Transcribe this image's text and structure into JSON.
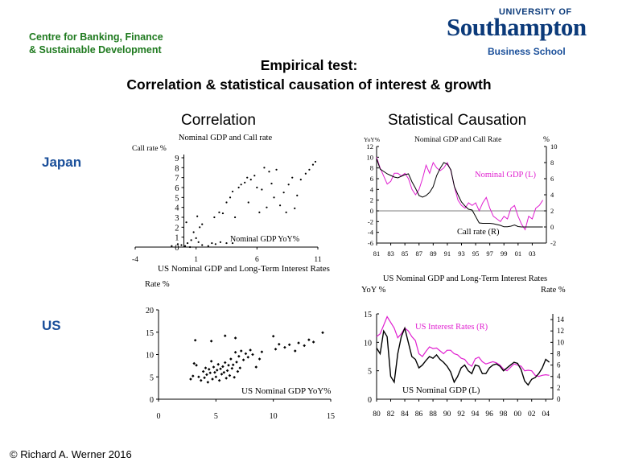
{
  "header": {
    "centre_line1": "Centre for Banking, Finance",
    "centre_line2": "& Sustainable Development",
    "university_small": "UNIVERSITY OF",
    "university_big": "Southampton",
    "business_school": "Business School"
  },
  "title_line1": "Empirical test:",
  "title_line2": "Correlation & statistical causation of interest & growth",
  "columns": {
    "left": "Correlation",
    "right": "Statistical Causation"
  },
  "rows": {
    "top": "Japan",
    "bottom": "US"
  },
  "footer": "© Richard A. Werner 2016",
  "colors": {
    "magenta": "#e020d0",
    "black": "#000000",
    "accent": "#1a4f9a",
    "green": "#1f7a1f"
  },
  "chart_data": [
    {
      "id": "japan-scatter",
      "type": "scatter",
      "title": "Nominal GDP and Call rate",
      "ylabel": "Call rate %",
      "xlabel": "Nominal GDP YoY%",
      "x_ticks": [
        "-4",
        "1",
        "6",
        "11"
      ],
      "y_ticks": [
        "0",
        "1",
        "2",
        "3",
        "4",
        "5",
        "6",
        "7",
        "8",
        "9"
      ],
      "xlim": [
        -4,
        11
      ],
      "ylim": [
        0,
        9
      ],
      "points": [
        [
          -1.0,
          0.1
        ],
        [
          -0.5,
          0.3
        ],
        [
          -0.2,
          0.2
        ],
        [
          0.1,
          0.1
        ],
        [
          0.3,
          0.4
        ],
        [
          0.5,
          0.0
        ],
        [
          0.6,
          0.7
        ],
        [
          0.8,
          1.5
        ],
        [
          1.0,
          0.9
        ],
        [
          1.2,
          0.5
        ],
        [
          1.3,
          2.0
        ],
        [
          1.5,
          2.3
        ],
        [
          0.2,
          2.5
        ],
        [
          1.1,
          3.1
        ],
        [
          1.5,
          0.2
        ],
        [
          2.0,
          0.1
        ],
        [
          2.3,
          0.4
        ],
        [
          2.6,
          0.3
        ],
        [
          3.0,
          0.5
        ],
        [
          3.5,
          0.4
        ],
        [
          4.0,
          0.4
        ],
        [
          2.5,
          3.0
        ],
        [
          2.9,
          3.5
        ],
        [
          3.2,
          3.4
        ],
        [
          3.5,
          4.5
        ],
        [
          3.8,
          5.0
        ],
        [
          4.0,
          5.6
        ],
        [
          4.2,
          3.0
        ],
        [
          4.5,
          6.0
        ],
        [
          4.7,
          6.3
        ],
        [
          5.0,
          6.5
        ],
        [
          5.2,
          7.0
        ],
        [
          5.3,
          4.5
        ],
        [
          5.5,
          6.8
        ],
        [
          5.8,
          7.2
        ],
        [
          6.0,
          6.0
        ],
        [
          6.2,
          3.5
        ],
        [
          6.4,
          5.8
        ],
        [
          6.6,
          8.0
        ],
        [
          6.8,
          4.0
        ],
        [
          7.0,
          7.6
        ],
        [
          7.2,
          6.4
        ],
        [
          7.4,
          5.0
        ],
        [
          7.6,
          7.8
        ],
        [
          7.9,
          4.2
        ],
        [
          8.2,
          5.5
        ],
        [
          8.4,
          3.5
        ],
        [
          8.6,
          6.3
        ],
        [
          8.9,
          7.0
        ],
        [
          9.1,
          3.9
        ],
        [
          9.3,
          5.2
        ],
        [
          9.6,
          6.8
        ],
        [
          10.0,
          7.4
        ],
        [
          10.3,
          7.8
        ],
        [
          10.6,
          8.3
        ],
        [
          10.8,
          8.6
        ]
      ]
    },
    {
      "id": "japan-timeseries",
      "type": "line",
      "title": "Nominal GDP and Call Rate",
      "left_unit": "YoY%",
      "right_unit": "%",
      "x_ticks": [
        "81",
        "83",
        "85",
        "87",
        "89",
        "91",
        "93",
        "95",
        "97",
        "99",
        "01",
        "03"
      ],
      "xlim": [
        81,
        105
      ],
      "left_ticks": [
        "12",
        "10",
        "8",
        "6",
        "4",
        "2",
        "0",
        "-2",
        "-4",
        "-6"
      ],
      "left_lim": [
        -6,
        12
      ],
      "right_ticks": [
        "10",
        "8",
        "6",
        "4",
        "2",
        "0",
        "-2"
      ],
      "right_lim": [
        -2,
        10
      ],
      "series": [
        {
          "name": "Nominal GDP (L)",
          "axis": "left",
          "color": "#e020d0",
          "x": [
            81,
            81.5,
            82,
            82.5,
            83,
            83.5,
            84,
            84.5,
            85,
            85.5,
            86,
            86.5,
            87,
            87.5,
            88,
            88.5,
            89,
            89.5,
            90,
            90.5,
            91,
            91.5,
            92,
            92.5,
            93,
            93.5,
            94,
            94.5,
            95,
            95.5,
            96,
            96.5,
            97,
            97.5,
            98,
            98.5,
            99,
            99.5,
            100,
            100.5,
            101,
            101.5,
            102,
            102.5,
            103,
            103.5,
            104,
            104.5
          ],
          "y": [
            10,
            8,
            6.5,
            5,
            5.5,
            7,
            7,
            6.5,
            7,
            6,
            4,
            3,
            4,
            6,
            8.5,
            7,
            9,
            8,
            7.5,
            8,
            9,
            7.5,
            4.5,
            2,
            1,
            0.5,
            1.5,
            1,
            1.5,
            0,
            1.5,
            2.5,
            0.5,
            -1,
            -1.5,
            -2,
            -1,
            -1.5,
            0.5,
            1,
            -1,
            -2.5,
            -3.5,
            -1,
            -1.5,
            0.5,
            1,
            2
          ]
        },
        {
          "name": "Call rate (R)",
          "axis": "right",
          "color": "#000000",
          "x": [
            81,
            81.5,
            82,
            82.5,
            83,
            83.5,
            84,
            84.5,
            85,
            85.5,
            86,
            86.5,
            87,
            87.5,
            88,
            88.5,
            89,
            89.5,
            90,
            90.5,
            91,
            91.5,
            92,
            92.5,
            93,
            93.5,
            94,
            94.5,
            95,
            95.5,
            96,
            96.5,
            97,
            97.5,
            98,
            98.5,
            99,
            99.5,
            100,
            100.5,
            101,
            101.5,
            102,
            102.5,
            103,
            103.5,
            104,
            104.5
          ],
          "y": [
            8.5,
            7.2,
            6.9,
            6.6,
            6.4,
            6.2,
            6.1,
            6.3,
            6.5,
            6.6,
            5.6,
            4.8,
            3.9,
            3.7,
            3.9,
            4.3,
            5,
            6.4,
            7.3,
            8,
            7.8,
            7.1,
            5,
            4,
            3.1,
            2.6,
            2.2,
            2.1,
            1.3,
            0.5,
            0.45,
            0.45,
            0.45,
            0.4,
            0.3,
            0.2,
            0.02,
            0.03,
            0.1,
            0.25,
            0.05,
            0.002,
            0.001,
            0.001,
            0.001,
            0.001,
            0.001,
            0.001
          ]
        }
      ],
      "annotations": [
        "Nominal GDP (L)",
        "Call rate (R)"
      ]
    },
    {
      "id": "us-scatter",
      "type": "scatter",
      "title": "US Nominal GDP and Long-Term Interest Rates",
      "ylabel": "Rate %",
      "xlabel": "US Nominal GDP YoY%",
      "x_ticks": [
        "0",
        "5",
        "10",
        "15"
      ],
      "y_ticks": [
        "0",
        "5",
        "10",
        "15",
        "20"
      ],
      "xlim": [
        0,
        15
      ],
      "ylim": [
        0,
        20
      ],
      "points": [
        [
          2.8,
          4.5
        ],
        [
          3.0,
          5.2
        ],
        [
          3.1,
          8.0
        ],
        [
          3.3,
          7.6
        ],
        [
          3.2,
          13.2
        ],
        [
          3.5,
          5.0
        ],
        [
          3.7,
          4.2
        ],
        [
          3.9,
          6.2
        ],
        [
          4.0,
          4.8
        ],
        [
          4.1,
          7.0
        ],
        [
          4.2,
          5.5
        ],
        [
          4.3,
          3.8
        ],
        [
          4.4,
          6.7
        ],
        [
          4.5,
          5.9
        ],
        [
          4.6,
          8.5
        ],
        [
          4.7,
          4.5
        ],
        [
          4.8,
          7.2
        ],
        [
          4.9,
          6.0
        ],
        [
          5.0,
          5.0
        ],
        [
          5.1,
          6.5
        ],
        [
          5.2,
          7.8
        ],
        [
          5.3,
          4.2
        ],
        [
          5.4,
          6.8
        ],
        [
          5.5,
          5.6
        ],
        [
          5.6,
          7.3
        ],
        [
          5.7,
          6.0
        ],
        [
          5.8,
          8.2
        ],
        [
          5.9,
          4.7
        ],
        [
          6.0,
          6.4
        ],
        [
          6.1,
          7.6
        ],
        [
          6.2,
          5.3
        ],
        [
          6.3,
          9.0
        ],
        [
          6.4,
          6.9
        ],
        [
          6.5,
          7.7
        ],
        [
          6.6,
          4.9
        ],
        [
          6.7,
          10.5
        ],
        [
          6.8,
          8.3
        ],
        [
          6.9,
          6.2
        ],
        [
          7.0,
          9.6
        ],
        [
          7.1,
          7.0
        ],
        [
          7.2,
          10.8
        ],
        [
          7.4,
          8.8
        ],
        [
          7.6,
          10.2
        ],
        [
          7.8,
          9.4
        ],
        [
          8.0,
          11.0
        ],
        [
          8.2,
          10.0
        ],
        [
          8.5,
          7.2
        ],
        [
          8.8,
          9.0
        ],
        [
          9.0,
          10.6
        ],
        [
          4.6,
          13.0
        ],
        [
          5.8,
          14.2
        ],
        [
          6.7,
          13.7
        ],
        [
          10.0,
          14.1
        ],
        [
          10.2,
          11.2
        ],
        [
          10.5,
          12.3
        ],
        [
          11.0,
          11.6
        ],
        [
          11.4,
          12.2
        ],
        [
          11.9,
          10.8
        ],
        [
          12.2,
          12.6
        ],
        [
          12.7,
          12.0
        ],
        [
          13.1,
          13.3
        ],
        [
          13.5,
          12.8
        ],
        [
          14.3,
          14.9
        ]
      ]
    },
    {
      "id": "us-timeseries",
      "type": "line",
      "title": "US Nominal GDP and Long-Term Interest Rates",
      "left_unit": "YoY %",
      "right_unit": "Rate %",
      "x_ticks": [
        "80",
        "82",
        "84",
        "86",
        "88",
        "90",
        "92",
        "94",
        "96",
        "98",
        "00",
        "02",
        "04"
      ],
      "xlim": [
        80,
        105
      ],
      "left_ticks": [
        "15",
        "10",
        "5",
        "0"
      ],
      "left_lim": [
        0,
        15
      ],
      "right_ticks": [
        "14",
        "12",
        "10",
        "8",
        "6",
        "4",
        "2",
        "0"
      ],
      "right_lim": [
        0,
        15
      ],
      "series": [
        {
          "name": "US Interest Rates (R)",
          "axis": "right",
          "color": "#e020d0",
          "x": [
            80,
            80.5,
            81,
            81.5,
            82,
            82.5,
            83,
            83.5,
            84,
            84.5,
            85,
            85.5,
            86,
            86.5,
            87,
            87.5,
            88,
            88.5,
            89,
            89.5,
            90,
            90.5,
            91,
            91.5,
            92,
            92.5,
            93,
            93.5,
            94,
            94.5,
            95,
            95.5,
            96,
            96.5,
            97,
            97.5,
            98,
            98.5,
            99,
            99.5,
            100,
            100.5,
            101,
            101.5,
            102,
            102.5,
            103,
            103.5,
            104,
            104.5
          ],
          "y": [
            11,
            11.5,
            13,
            14.5,
            13.5,
            12.5,
            10.8,
            11.5,
            12.5,
            12,
            11,
            10.3,
            8,
            7.5,
            8.4,
            9.2,
            8.9,
            9,
            8.5,
            8,
            8.6,
            8.6,
            8,
            7.8,
            7.2,
            7,
            6.2,
            5.8,
            7.1,
            7.4,
            6.6,
            6.2,
            6.4,
            6.6,
            6.4,
            6,
            5.3,
            5,
            5.6,
            6.2,
            6,
            5.8,
            5,
            5.1,
            5,
            4.2,
            4,
            4.2,
            4.3,
            4.2
          ]
        },
        {
          "name": "US Nominal GDP (L)",
          "axis": "left",
          "color": "#000000",
          "x": [
            80,
            80.5,
            81,
            81.5,
            82,
            82.5,
            83,
            83.5,
            84,
            84.5,
            85,
            85.5,
            86,
            86.5,
            87,
            87.5,
            88,
            88.5,
            89,
            89.5,
            90,
            90.5,
            91,
            91.5,
            92,
            92.5,
            93,
            93.5,
            94,
            94.5,
            95,
            95.5,
            96,
            96.5,
            97,
            97.5,
            98,
            98.5,
            99,
            99.5,
            100,
            100.5,
            101,
            101.5,
            102,
            102.5,
            103,
            103.5,
            104,
            104.5
          ],
          "y": [
            9,
            8,
            12,
            11,
            4,
            3,
            8,
            11,
            12.5,
            10,
            7.5,
            7,
            5.5,
            6,
            6.8,
            7.5,
            7.2,
            7.8,
            7,
            6.5,
            5.8,
            4.8,
            3,
            4,
            5.5,
            6,
            5,
            4.5,
            6,
            5.8,
            4.5,
            4.5,
            5.5,
            6,
            6.2,
            5.8,
            5,
            5.5,
            6,
            6.5,
            6.3,
            5.2,
            3.2,
            2.5,
            3.5,
            3.8,
            4.5,
            5.5,
            7,
            6.5
          ]
        }
      ],
      "annotations": [
        "US Interest Rates (R)",
        "US Nominal GDP (L)"
      ]
    }
  ]
}
